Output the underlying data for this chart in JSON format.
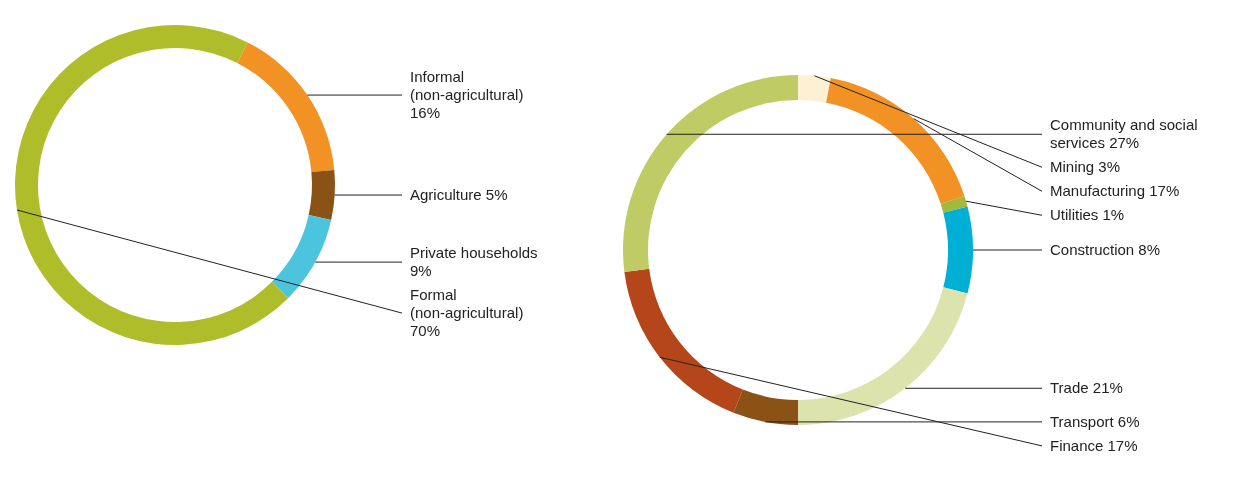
{
  "chart_data": [
    {
      "type": "donut",
      "categories": [
        "Informal (non-agricultural)",
        "Agriculture",
        "Private households",
        "Formal (non-agricultural)"
      ],
      "values": [
        16,
        5,
        9,
        70
      ],
      "colors": [
        "#f39224",
        "#8a5214",
        "#4cc4de",
        "#b0bd2a"
      ],
      "value_labels": [
        "16%",
        "5%",
        "9%",
        "70%"
      ],
      "legend": false
    },
    {
      "type": "donut",
      "categories": [
        "Mining",
        "Manufacturing",
        "Utilities",
        "Construction",
        "Trade",
        "Transport",
        "Finance",
        "Community and social services"
      ],
      "values": [
        3,
        17,
        1,
        8,
        21,
        6,
        17,
        27
      ],
      "colors": [
        "#fdf0d5",
        "#f39224",
        "#a4b93a",
        "#00b0d4",
        "#dde3ad",
        "#8a5214",
        "#b5461a",
        "#bfcb64"
      ],
      "value_labels": [
        "3%",
        "17%",
        "1%",
        "8%",
        "21%",
        "6%",
        "17%",
        "27%"
      ],
      "legend": false
    }
  ]
}
